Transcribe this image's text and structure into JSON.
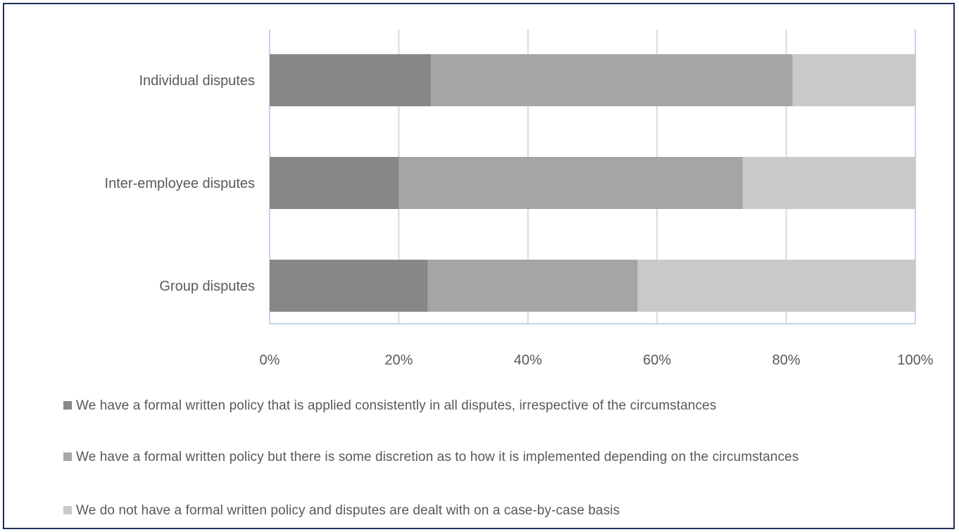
{
  "chart_data": {
    "type": "bar",
    "orientation": "horizontal",
    "stacked": "percent",
    "categories": [
      "Individual disputes",
      "Inter-employee disputes",
      "Group disputes"
    ],
    "series": [
      {
        "name": "We have a formal written policy that is applied consistently in all disputes, irrespective of the circumstances",
        "color": "#878787",
        "values": [
          25,
          20,
          24.5
        ]
      },
      {
        "name": "We have a formal written policy but there is some discretion as to how it is implemented depending on the circumstances",
        "color": "#a5a5a5",
        "values": [
          56,
          53.3,
          32.5
        ]
      },
      {
        "name": "We do not have a formal written policy and disputes are dealt with on a case-by-case basis",
        "color": "#c9c9c9",
        "values": [
          19,
          26.7,
          43
        ]
      }
    ],
    "x_ticks": [
      "0%",
      "20%",
      "40%",
      "60%",
      "80%",
      "100%"
    ],
    "xlim": [
      0,
      100
    ],
    "grid": true,
    "legend_position": "bottom"
  }
}
